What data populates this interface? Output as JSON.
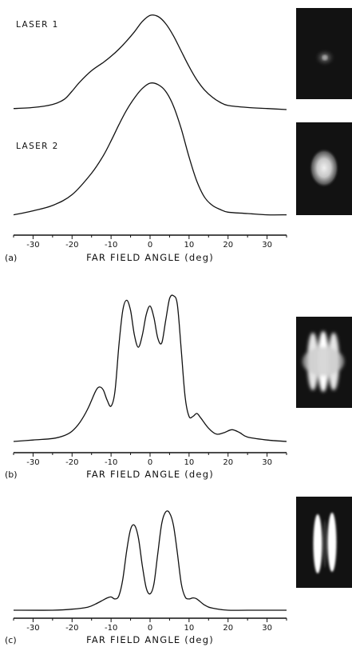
{
  "chart_data": [
    {
      "type": "line",
      "panel_label": "(a)",
      "xlabel": "FAR FIELD ANGLE (deg)",
      "xlim": [
        -35,
        35
      ],
      "xticks": [
        -30,
        -20,
        -10,
        0,
        10,
        20,
        30
      ],
      "tick_labels": [
        "-30",
        "-20",
        "-10",
        "0",
        "10",
        "20",
        "30"
      ],
      "ylim": [
        0,
        1
      ],
      "grid": false,
      "series": [
        {
          "name": "LASER 1",
          "x": [
            -35,
            -30,
            -25,
            -22,
            -20,
            -18,
            -15,
            -12,
            -10,
            -8,
            -6,
            -4,
            -2,
            0,
            2,
            4,
            6,
            8,
            10,
            12,
            14,
            16,
            18,
            20,
            25,
            30,
            35
          ],
          "y": [
            0.01,
            0.02,
            0.05,
            0.1,
            0.18,
            0.27,
            0.38,
            0.46,
            0.52,
            0.59,
            0.67,
            0.76,
            0.86,
            0.92,
            0.91,
            0.84,
            0.72,
            0.57,
            0.42,
            0.29,
            0.19,
            0.12,
            0.07,
            0.04,
            0.02,
            0.01,
            0.0
          ]
        },
        {
          "name": "LASER 2",
          "x": [
            -35,
            -30,
            -25,
            -20,
            -15,
            -12,
            -10,
            -8,
            -6,
            -4,
            -2,
            0,
            2,
            4,
            6,
            8,
            10,
            12,
            14,
            16,
            18,
            20,
            25,
            30,
            35
          ],
          "y": [
            0.02,
            0.05,
            0.09,
            0.17,
            0.33,
            0.46,
            0.57,
            0.69,
            0.8,
            0.89,
            0.96,
            1.0,
            0.99,
            0.94,
            0.83,
            0.66,
            0.45,
            0.27,
            0.15,
            0.09,
            0.06,
            0.04,
            0.03,
            0.02,
            0.02
          ]
        }
      ]
    },
    {
      "type": "line",
      "panel_label": "(b)",
      "xlabel": "FAR FIELD ANGLE (deg)",
      "xlim": [
        -35,
        35
      ],
      "xticks": [
        -30,
        -20,
        -10,
        0,
        10,
        20,
        30
      ],
      "tick_labels": [
        "-30",
        "-20",
        "-10",
        "0",
        "10",
        "20",
        "30"
      ],
      "ylim": [
        0,
        1
      ],
      "grid": false,
      "series": [
        {
          "x": [
            -35,
            -30,
            -25,
            -22,
            -20,
            -18,
            -16,
            -14,
            -13,
            -12,
            -11,
            -10,
            -9,
            -8,
            -7,
            -6,
            -5,
            -4,
            -3,
            -2,
            -1,
            0,
            1,
            2,
            3,
            4,
            5,
            6,
            7,
            8,
            9,
            10,
            11,
            12,
            13,
            15,
            17,
            19,
            21,
            23,
            25,
            30,
            35
          ],
          "y": [
            0.0,
            0.01,
            0.02,
            0.04,
            0.07,
            0.13,
            0.22,
            0.34,
            0.37,
            0.35,
            0.28,
            0.24,
            0.34,
            0.65,
            0.89,
            0.96,
            0.89,
            0.72,
            0.64,
            0.72,
            0.86,
            0.92,
            0.84,
            0.7,
            0.67,
            0.82,
            0.97,
            0.99,
            0.93,
            0.62,
            0.3,
            0.17,
            0.17,
            0.19,
            0.16,
            0.09,
            0.05,
            0.06,
            0.08,
            0.06,
            0.03,
            0.01,
            0.0
          ]
        }
      ]
    },
    {
      "type": "line",
      "panel_label": "(c)",
      "xlabel": "FAR FIELD ANGLE (deg)",
      "xlim": [
        -35,
        35
      ],
      "xticks": [
        -30,
        -20,
        -10,
        0,
        10,
        20,
        30
      ],
      "tick_labels": [
        "-30",
        "-20",
        "-10",
        "0",
        "10",
        "20",
        "30"
      ],
      "ylim": [
        0,
        1
      ],
      "grid": false,
      "series": [
        {
          "x": [
            -35,
            -25,
            -20,
            -16,
            -14,
            -12,
            -11,
            -10,
            -9,
            -8,
            -7,
            -6,
            -5,
            -4,
            -3,
            -2,
            -1,
            0,
            1,
            2,
            3,
            4,
            5,
            6,
            7,
            8,
            9,
            10,
            11,
            12,
            14,
            16,
            20,
            25,
            35
          ],
          "y": [
            0.0,
            0.0,
            0.01,
            0.03,
            0.06,
            0.1,
            0.12,
            0.13,
            0.11,
            0.14,
            0.3,
            0.58,
            0.79,
            0.83,
            0.71,
            0.44,
            0.22,
            0.16,
            0.26,
            0.56,
            0.85,
            0.96,
            0.95,
            0.83,
            0.56,
            0.26,
            0.13,
            0.11,
            0.12,
            0.11,
            0.05,
            0.02,
            0.0,
            0.0,
            0.0
          ]
        }
      ]
    }
  ]
}
